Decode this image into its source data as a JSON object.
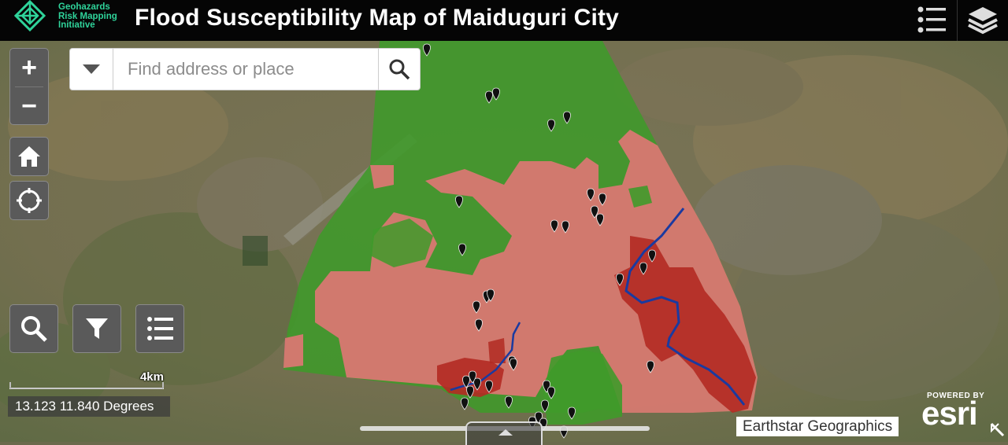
{
  "header": {
    "org_line1": "Geohazards",
    "org_line2": "Risk Mapping",
    "org_line3": "Initiative",
    "title": "Flood Susceptibility Map of Maiduguri City"
  },
  "colors": {
    "brand": "#2fd39a",
    "low_susceptibility": "#3f9a2a",
    "moderate_susceptibility": "#d96b6b",
    "high_susceptibility": "#b22a22",
    "river": "#1a3aa0"
  },
  "search": {
    "placeholder": "Find address or place",
    "value": ""
  },
  "controls": {
    "zoom_in": "+",
    "zoom_out": "−",
    "home_icon": "home-icon",
    "locate_icon": "crosshair-icon",
    "search_tool_icon": "search-icon",
    "filter_icon": "filter-icon",
    "layer_list_icon": "list-icon",
    "menu_icon": "list-icon",
    "layers_icon": "layers-icon"
  },
  "scale": {
    "label": "4km"
  },
  "coordinates": {
    "text": "13.123 11.840 Degrees"
  },
  "attribution": {
    "powered_by": "POWERED BY",
    "brand": "esri",
    "basemap": "Earthstar Geographics"
  },
  "markers": {
    "count": 38
  }
}
